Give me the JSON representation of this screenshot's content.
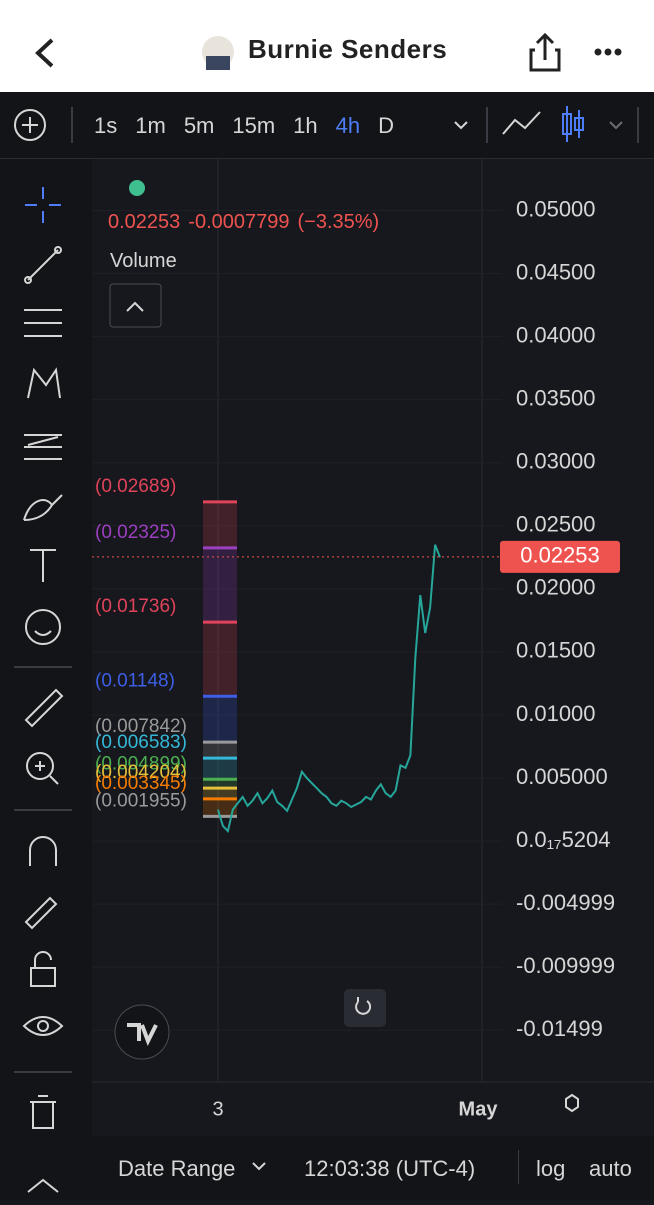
{
  "header": {
    "title": "Burnie Senders"
  },
  "toolbar": {
    "intervals": [
      "1s",
      "1m",
      "5m",
      "15m",
      "1h",
      "4h",
      "D"
    ],
    "active_interval": "4h"
  },
  "legend": {
    "price": "0.02253",
    "change": "-0.0007799",
    "change_pct": "(−3.35%)",
    "volume_label": "Volume"
  },
  "price_axis": {
    "ylim": [
      -0.0191,
      0.054
    ],
    "yticks": [
      {
        "value": 0.05,
        "label": "0.05000"
      },
      {
        "value": 0.045,
        "label": "0.04500"
      },
      {
        "value": 0.04,
        "label": "0.04000"
      },
      {
        "value": 0.035,
        "label": "0.03500"
      },
      {
        "value": 0.03,
        "label": "0.03000"
      },
      {
        "value": 0.025,
        "label": "0.02500"
      },
      {
        "value": 0.02,
        "label": "0.02000"
      },
      {
        "value": 0.015,
        "label": "0.01500"
      },
      {
        "value": 0.01,
        "label": "0.01000"
      },
      {
        "value": 0.005,
        "label": "0.005000"
      },
      {
        "value": 5.204e-18,
        "label": "0.0₁₇5204"
      },
      -0.004999,
      -0.009999,
      -0.01499
    ],
    "last_price": 0.02253
  },
  "fib_levels": [
    {
      "value": 0.02689,
      "label": "(0.02689)",
      "color": "#e0435a"
    },
    {
      "value": 0.02325,
      "label": "(0.02325)",
      "color": "#9c3fc0"
    },
    {
      "value": 0.01736,
      "label": "(0.01736)",
      "color": "#e0435a"
    },
    {
      "value": 0.01148,
      "label": "(0.01148)",
      "color": "#3c5fe6"
    },
    {
      "value": 0.007842,
      "label": "(0.007842)",
      "color": "#9a9a9a"
    },
    {
      "value": 0.006583,
      "label": "(0.006583)",
      "color": "#35b8d8"
    },
    {
      "value": 0.004899,
      "label": "(0.004899)",
      "color": "#4caf50"
    },
    {
      "value": 0.004204,
      "label": "(0.004204)",
      "color": "#e5c03a"
    },
    {
      "value": 0.003345,
      "label": "(0.003345)",
      "color": "#f57c00"
    },
    {
      "value": 0.001955,
      "label": "(0.001955)",
      "color": "#9a9a9a"
    }
  ],
  "price_line": [
    0.0025,
    0.0012,
    0.0008,
    0.0025,
    0.003,
    0.0035,
    0.0028,
    0.0032,
    0.0038,
    0.003,
    0.0034,
    0.004,
    0.0031,
    0.0028,
    0.0024,
    0.0033,
    0.0042,
    0.0055,
    0.005,
    0.0046,
    0.0042,
    0.0038,
    0.0035,
    0.003,
    0.0028,
    0.0032,
    0.003,
    0.0027,
    0.0029,
    0.0031,
    0.0035,
    0.0033,
    0.004,
    0.0045,
    0.0038,
    0.0035,
    0.004,
    0.006,
    0.0058,
    0.0068,
    0.0145,
    0.0195,
    0.0165,
    0.0185,
    0.0235,
    0.0225
  ],
  "time_labels": [
    "3",
    "May"
  ],
  "footer": {
    "date_range": "Date Range",
    "time": "12:03:38 (UTC-4)",
    "log": "log",
    "auto": "auto"
  }
}
